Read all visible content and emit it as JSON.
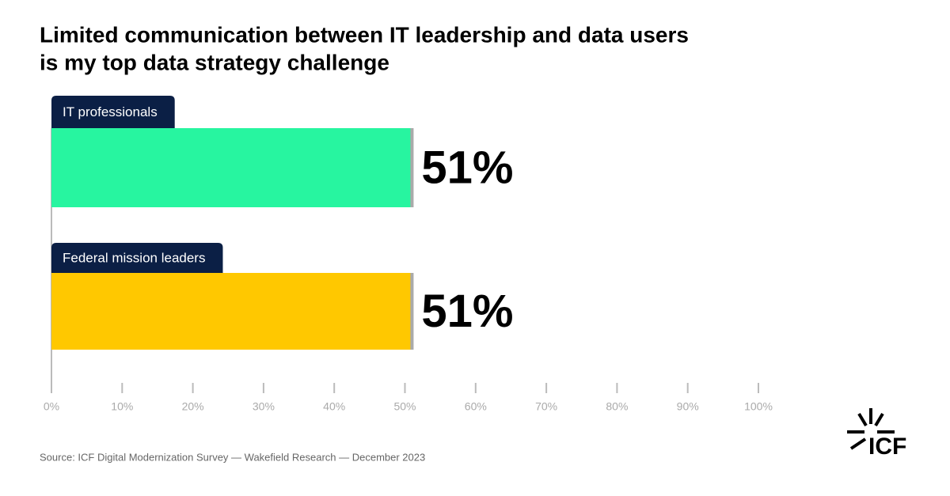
{
  "chart_data": {
    "type": "bar",
    "orientation": "horizontal",
    "title": [
      "Limited communication between IT leadership and data users",
      "is my top data strategy challenge"
    ],
    "categories": [
      "IT professionals",
      "Federal mission leaders"
    ],
    "values": [
      51,
      51
    ],
    "value_labels": [
      "51%",
      "51%"
    ],
    "colors": [
      "#27f5a0",
      "#ffc800"
    ],
    "xlim": [
      0,
      100
    ],
    "xticks": [
      {
        "value": 0,
        "label": "0%"
      },
      {
        "value": 10,
        "label": "10%"
      },
      {
        "value": 20,
        "label": "20%"
      },
      {
        "value": 30,
        "label": "30%"
      },
      {
        "value": 40,
        "label": "40%"
      },
      {
        "value": 50,
        "label": "50%"
      },
      {
        "value": 60,
        "label": "60%"
      },
      {
        "value": 70,
        "label": "70%"
      },
      {
        "value": 80,
        "label": "80%"
      },
      {
        "value": 90,
        "label": "90%"
      },
      {
        "value": 100,
        "label": "100%"
      }
    ],
    "source": "Source: ICF Digital Modernization Survey — Wakefield Research — December 2023",
    "logo": "ICF"
  }
}
